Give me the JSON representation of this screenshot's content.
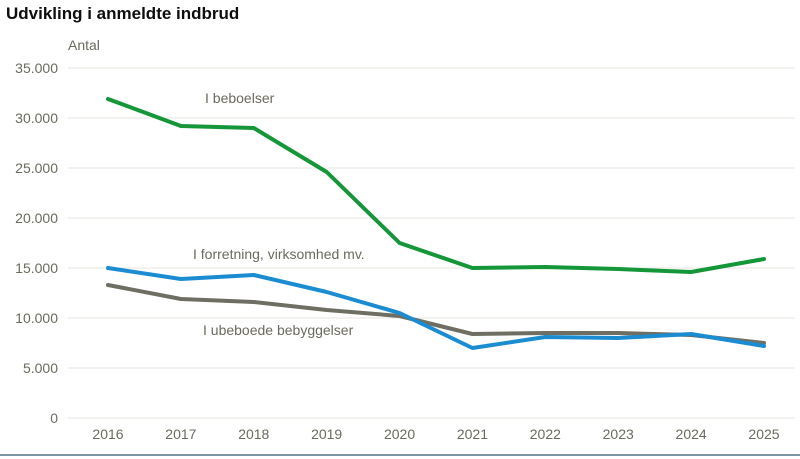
{
  "page": {
    "title": "Udvikling i anmeldte indbrud"
  },
  "chart_data": {
    "type": "line",
    "title": "Udvikling i anmeldte indbrud",
    "ylabel": "Antal",
    "xlabel": "",
    "categories": [
      "2016",
      "2017",
      "2018",
      "2019",
      "2020",
      "2021",
      "2022",
      "2023",
      "2024",
      "2025"
    ],
    "series": [
      {
        "id": "beboelser",
        "name": "I beboelser",
        "color": "#149639",
        "values": [
          31900,
          29200,
          29000,
          24600,
          17500,
          15000,
          15100,
          14900,
          14600,
          15900
        ]
      },
      {
        "id": "forretning",
        "name": "I forretning, virksomhed mv.",
        "color": "#1b8cd1",
        "values": [
          15000,
          13900,
          14300,
          12600,
          10500,
          7000,
          8100,
          8000,
          8400,
          7200
        ]
      },
      {
        "id": "ubeboede",
        "name": "I ubeboede bebyggelser",
        "color": "#6f6e62",
        "values": [
          13300,
          11900,
          11600,
          10800,
          10200,
          8400,
          8500,
          8500,
          8300,
          7500
        ]
      }
    ],
    "yticks": {
      "values": [
        0,
        5000,
        10000,
        15000,
        20000,
        25000,
        30000,
        35000
      ],
      "labels": [
        "0",
        "5.000",
        "10.000",
        "15.000",
        "20.000",
        "25.000",
        "30.000",
        "35.000"
      ]
    },
    "ylim": [
      0,
      35000
    ],
    "grid": true,
    "legend_position": "inline-labels"
  },
  "colors": {
    "grid": "#e7e5df",
    "axis_text": "#6b6a5e",
    "title_text": "#0e0e0e",
    "bottom_rule": "#7c96a6"
  }
}
